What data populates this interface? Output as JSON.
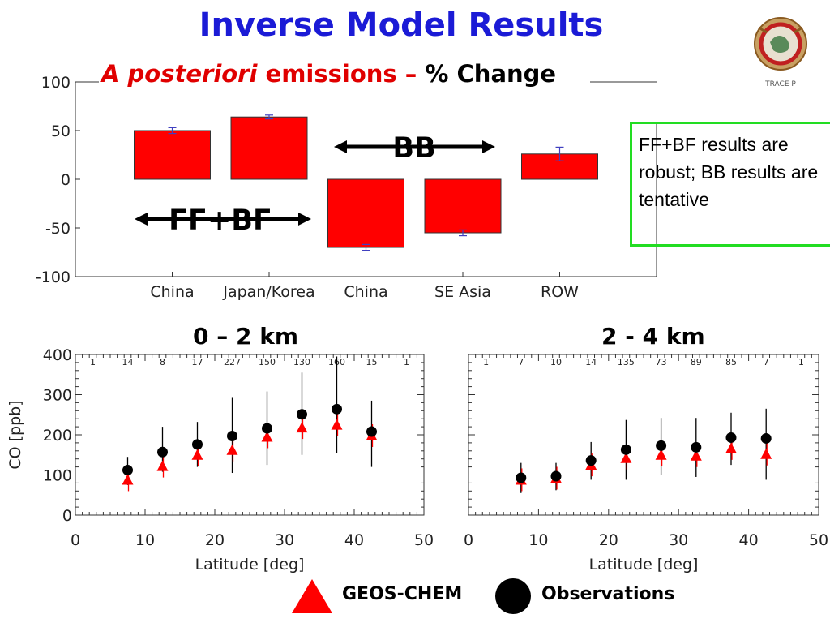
{
  "title": "Inverse Model Results",
  "subtitle": {
    "italic": "A posteriori",
    "middle": " emissions – ",
    "end": "% Change"
  },
  "note": "FF+BF results are robust; BB results are tentative",
  "logo": {
    "text": "TRACE P",
    "icon": "trace-p-seal-icon"
  },
  "colors": {
    "bar": "#ff0000",
    "title": "#1b1bd6",
    "note_border": "#22dd22",
    "model": "#ff0000",
    "obs": "#000000",
    "errorbar": "#4040c0"
  },
  "chart_data": [
    {
      "type": "bar",
      "categories": [
        "China",
        "Japan/Korea",
        "China",
        "SE Asia",
        "ROW"
      ],
      "values": [
        50,
        64,
        -70,
        -55,
        26
      ],
      "errors": [
        3,
        2,
        3,
        3,
        7
      ],
      "ylim": [
        -100,
        100
      ],
      "yticks": [
        "100",
        "50",
        "0",
        "-50",
        "-100"
      ],
      "group_labels": [
        {
          "text": "FF+BF"
        },
        {
          "text": "BB"
        }
      ]
    },
    {
      "type": "scatter",
      "title": "0 – 2 km",
      "xlabel": "Latitude [deg]",
      "ylabel": "CO [ppb]",
      "xlim": [
        0,
        50
      ],
      "ylim": [
        0,
        400
      ],
      "xticks": [
        "0",
        "10",
        "20",
        "30",
        "40",
        "50"
      ],
      "yticks": [
        "400",
        "300",
        "200",
        "100",
        "0"
      ],
      "counts": [
        "1",
        "14",
        "8",
        "17",
        "227",
        "150",
        "130",
        "160",
        "15",
        "1"
      ],
      "series": [
        {
          "name": "Observations",
          "x": [
            7.5,
            12.5,
            17.5,
            22.5,
            27.5,
            32.5,
            37.5,
            42.5
          ],
          "y": [
            112,
            157,
            176,
            197,
            216,
            251,
            264,
            208
          ],
          "low": [
            75,
            108,
            120,
            105,
            125,
            150,
            155,
            120
          ],
          "high": [
            145,
            220,
            232,
            292,
            308,
            355,
            395,
            285
          ]
        },
        {
          "name": "GEOS-CHEM",
          "x": [
            7.5,
            12.5,
            17.5,
            22.5,
            27.5,
            32.5,
            37.5,
            42.5
          ],
          "y": [
            88,
            122,
            150,
            162,
            195,
            218,
            225,
            198
          ]
        }
      ]
    },
    {
      "type": "scatter",
      "title": "2 - 4 km",
      "xlabel": "Latitude [deg]",
      "xlim": [
        0,
        50
      ],
      "ylim": [
        0,
        400
      ],
      "xticks": [
        "0",
        "10",
        "20",
        "30",
        "40",
        "50"
      ],
      "counts": [
        "1",
        "7",
        "10",
        "14",
        "135",
        "73",
        "89",
        "85",
        "7",
        "1"
      ],
      "series": [
        {
          "name": "Observations",
          "x": [
            7.5,
            12.5,
            17.5,
            22.5,
            27.5,
            32.5,
            37.5,
            42.5
          ],
          "y": [
            93,
            97,
            136,
            163,
            173,
            169,
            193,
            191
          ],
          "low": [
            55,
            62,
            88,
            88,
            100,
            95,
            125,
            88
          ],
          "high": [
            130,
            130,
            182,
            237,
            242,
            242,
            255,
            265
          ]
        },
        {
          "name": "GEOS-CHEM",
          "x": [
            7.5,
            12.5,
            17.5,
            22.5,
            27.5,
            32.5,
            37.5,
            42.5
          ],
          "y": [
            88,
            92,
            125,
            142,
            150,
            148,
            166,
            152
          ]
        }
      ]
    }
  ],
  "legend": {
    "model": "GEOS-CHEM",
    "obs": "Observations"
  }
}
